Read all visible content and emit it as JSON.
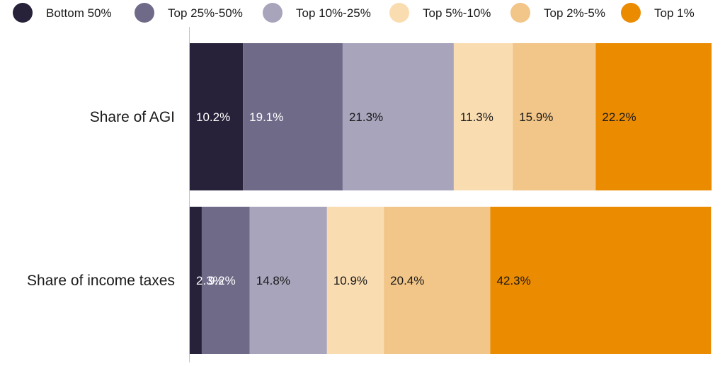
{
  "chart_data": {
    "type": "bar",
    "orientation": "horizontal",
    "stacked": true,
    "categories": [
      "Share of AGI",
      "Share of income taxes"
    ],
    "series": [
      {
        "name": "Bottom 50%",
        "color": "#272239",
        "values": [
          10.2,
          2.3
        ],
        "labels": [
          "10.2%",
          "2.3%"
        ]
      },
      {
        "name": "Top 25%-50%",
        "color": "#706A89",
        "values": [
          19.1,
          9.2
        ],
        "labels": [
          "19.1%",
          "9.2%"
        ]
      },
      {
        "name": "Top 10%-25%",
        "color": "#A8A4BC",
        "values": [
          21.3,
          14.8
        ],
        "labels": [
          "21.3%",
          "14.8%"
        ]
      },
      {
        "name": "Top 5%-10%",
        "color": "#FADCB1",
        "values": [
          11.3,
          10.9
        ],
        "labels": [
          "11.3%",
          "10.9%"
        ]
      },
      {
        "name": "Top 2%-5%",
        "color": "#F2C588",
        "values": [
          15.9,
          20.4
        ],
        "labels": [
          "15.9%",
          "20.4%"
        ]
      },
      {
        "name": "Top 1%",
        "color": "#EB8B00",
        "values": [
          22.2,
          42.3
        ],
        "labels": [
          "22.2%",
          "42.3%"
        ]
      }
    ],
    "title": "",
    "xlabel": "",
    "ylabel": "",
    "xlim": [
      0,
      100
    ],
    "grid": false,
    "legend": "top",
    "data_labels": true,
    "label_colors": {
      "on_dark": "#ffffff",
      "on_light": "#1a1a1a"
    }
  }
}
